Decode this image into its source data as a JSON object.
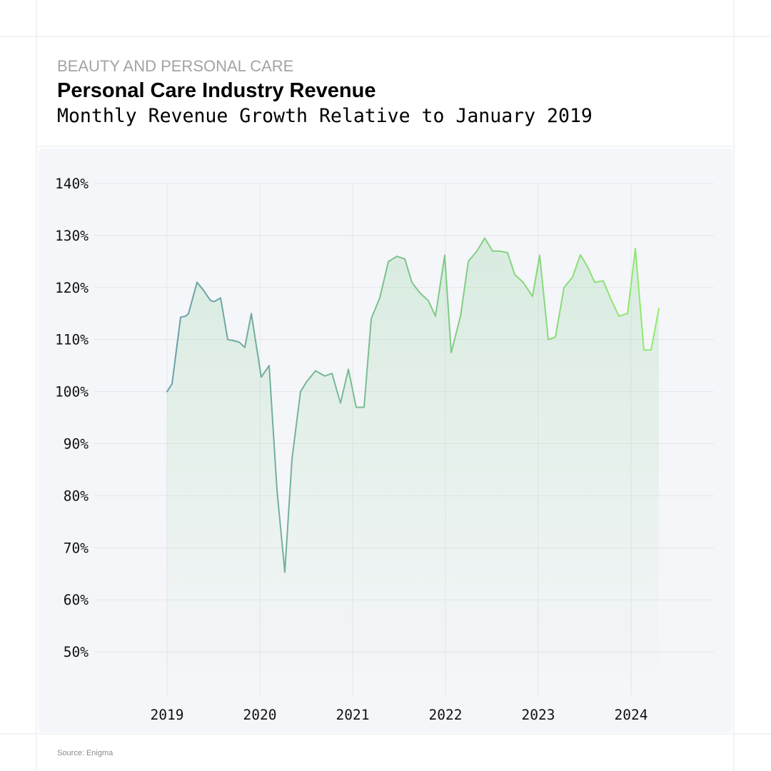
{
  "chart_data": {
    "type": "line",
    "kicker": "BEAUTY AND PERSONAL CARE",
    "title": "Personal Care Industry Revenue",
    "subtitle": "Monthly Revenue Growth Relative to January 2019",
    "source": "Source: Enigma",
    "x": [
      2019.0,
      2019.054,
      2019.146,
      2019.2,
      2019.231,
      2019.323,
      2019.392,
      2019.469,
      2019.508,
      2019.577,
      2019.654,
      2019.715,
      2019.777,
      2019.838,
      2019.908,
      2020.015,
      2020.1,
      2020.185,
      2020.269,
      2020.346,
      2020.438,
      2020.508,
      2020.6,
      2020.7,
      2020.777,
      2020.869,
      2020.954,
      2021.038,
      2021.123,
      2021.2,
      2021.292,
      2021.385,
      2021.477,
      2021.562,
      2021.638,
      2021.723,
      2021.815,
      2021.892,
      2021.992,
      2022.062,
      2022.162,
      2022.246,
      2022.338,
      2022.423,
      2022.508,
      2022.585,
      2022.669,
      2022.746,
      2022.838,
      2022.938,
      2023.015,
      2023.108,
      2023.185,
      2023.277,
      2023.369,
      2023.454,
      2023.531,
      2023.608,
      2023.7,
      2023.777,
      2023.869,
      2023.962,
      2024.046,
      2024.138,
      2024.215,
      2024.3
    ],
    "values": [
      100,
      101.5,
      114.3,
      114.5,
      115,
      121,
      119.5,
      117.5,
      117.3,
      118,
      110,
      109.8,
      109.5,
      108.5,
      115,
      102.8,
      105,
      81,
      65.3,
      87,
      100,
      102,
      104,
      103,
      103.5,
      97.8,
      104.3,
      97,
      97,
      114,
      118,
      125,
      126,
      125.5,
      121,
      119,
      117.5,
      114.5,
      126.2,
      107.5,
      114.5,
      125,
      127,
      129.5,
      127,
      127,
      126.7,
      122.5,
      121,
      118.3,
      126.2,
      110,
      110.5,
      120,
      122,
      126.3,
      124,
      121,
      121.3,
      118,
      114.5,
      115,
      127.5,
      108,
      108,
      116
    ],
    "line_gradient": [
      "#6a9fab",
      "#90ec6a"
    ],
    "area_color": "#8fd19e",
    "xlim": [
      2018.3,
      2024.9
    ],
    "xticks": [
      2019,
      2020,
      2021,
      2022,
      2023,
      2024
    ],
    "ylim": [
      41.5,
      140
    ],
    "yticks": [
      {
        "value": 50,
        "label": "50%"
      },
      {
        "value": 60,
        "label": "60%"
      },
      {
        "value": 70,
        "label": "70%"
      },
      {
        "value": 80,
        "label": "80%"
      },
      {
        "value": 90,
        "label": "90%"
      },
      {
        "value": 100,
        "label": "100%"
      },
      {
        "value": 110,
        "label": "110%"
      },
      {
        "value": 120,
        "label": "120%"
      },
      {
        "value": 130,
        "label": "130%"
      },
      {
        "value": 140,
        "label": "140%"
      }
    ],
    "grid": true
  }
}
